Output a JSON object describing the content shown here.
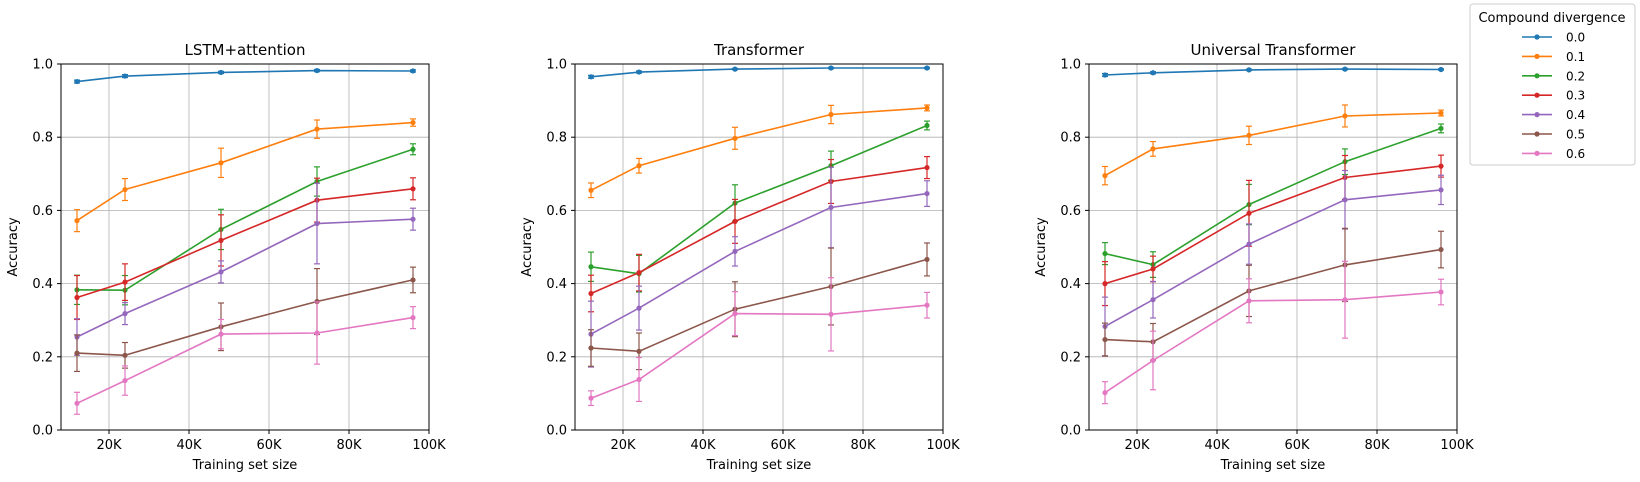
{
  "legend": {
    "title": "Compound divergence",
    "entries": [
      "0.0",
      "0.1",
      "0.2",
      "0.3",
      "0.4",
      "0.5",
      "0.6"
    ]
  },
  "colors": [
    "#1f77b4",
    "#ff7f0e",
    "#2ca02c",
    "#d62728",
    "#9467bd",
    "#8c564b",
    "#e377c2"
  ],
  "chart_data": [
    {
      "type": "line",
      "title": "LSTM+attention",
      "xlabel": "Training set size",
      "ylabel": "Accuracy",
      "xlim": [
        8000,
        100000
      ],
      "ylim": [
        0,
        1
      ],
      "xticks": [
        20000,
        40000,
        60000,
        80000,
        100000
      ],
      "xtick_labels": [
        "20K",
        "40K",
        "60K",
        "80K",
        "100K"
      ],
      "yticks": [
        0,
        0.2,
        0.4,
        0.6,
        0.8,
        1.0
      ],
      "ytick_labels": [
        "0.0",
        "0.2",
        "0.4",
        "0.6",
        "0.8",
        "1.0"
      ],
      "grid": true,
      "x": [
        12000,
        24000,
        48000,
        72000,
        96000
      ],
      "series": [
        {
          "name": "0.0",
          "values": [
            0.952,
            0.967,
            0.977,
            0.982,
            0.981
          ],
          "err": [
            0.004,
            0.004,
            0.003,
            0.003,
            0.003
          ]
        },
        {
          "name": "0.1",
          "values": [
            0.572,
            0.657,
            0.73,
            0.822,
            0.84
          ],
          "err": [
            0.03,
            0.03,
            0.04,
            0.025,
            0.01
          ]
        },
        {
          "name": "0.2",
          "values": [
            0.383,
            0.382,
            0.548,
            0.679,
            0.767
          ],
          "err": [
            0.04,
            0.04,
            0.055,
            0.04,
            0.015
          ]
        },
        {
          "name": "0.3",
          "values": [
            0.362,
            0.404,
            0.518,
            0.628,
            0.659
          ],
          "err": [
            0.06,
            0.05,
            0.07,
            0.06,
            0.03
          ]
        },
        {
          "name": "0.4",
          "values": [
            0.254,
            0.318,
            0.432,
            0.564,
            0.576
          ],
          "err": [
            0.05,
            0.03,
            0.03,
            0.11,
            0.03
          ]
        },
        {
          "name": "0.5",
          "values": [
            0.21,
            0.204,
            0.282,
            0.351,
            0.41
          ],
          "err": [
            0.05,
            0.035,
            0.065,
            0.09,
            0.035
          ]
        },
        {
          "name": "0.6",
          "values": [
            0.073,
            0.135,
            0.262,
            0.265,
            0.307
          ],
          "err": [
            0.03,
            0.04,
            0.04,
            0.085,
            0.03
          ]
        }
      ]
    },
    {
      "type": "line",
      "title": "Transformer",
      "xlabel": "Training set size",
      "ylabel": "Accuracy",
      "xlim": [
        8000,
        100000
      ],
      "ylim": [
        0,
        1
      ],
      "xticks": [
        20000,
        40000,
        60000,
        80000,
        100000
      ],
      "xtick_labels": [
        "20K",
        "40K",
        "60K",
        "80K",
        "100K"
      ],
      "yticks": [
        0,
        0.2,
        0.4,
        0.6,
        0.8,
        1.0
      ],
      "ytick_labels": [
        "0.0",
        "0.2",
        "0.4",
        "0.6",
        "0.8",
        "1.0"
      ],
      "grid": true,
      "x": [
        12000,
        24000,
        48000,
        72000,
        96000
      ],
      "series": [
        {
          "name": "0.0",
          "values": [
            0.965,
            0.978,
            0.986,
            0.989,
            0.989
          ],
          "err": [
            0.004,
            0.003,
            0.002,
            0.002,
            0.002
          ]
        },
        {
          "name": "0.1",
          "values": [
            0.655,
            0.722,
            0.797,
            0.862,
            0.88
          ],
          "err": [
            0.02,
            0.02,
            0.03,
            0.025,
            0.008
          ]
        },
        {
          "name": "0.2",
          "values": [
            0.446,
            0.427,
            0.62,
            0.722,
            0.832
          ],
          "err": [
            0.04,
            0.05,
            0.05,
            0.04,
            0.012
          ]
        },
        {
          "name": "0.3",
          "values": [
            0.373,
            0.43,
            0.57,
            0.679,
            0.717
          ],
          "err": [
            0.05,
            0.05,
            0.06,
            0.06,
            0.03
          ]
        },
        {
          "name": "0.4",
          "values": [
            0.262,
            0.333,
            0.488,
            0.608,
            0.646
          ],
          "err": [
            0.09,
            0.06,
            0.04,
            0.11,
            0.035
          ]
        },
        {
          "name": "0.5",
          "values": [
            0.224,
            0.215,
            0.33,
            0.392,
            0.466
          ],
          "err": [
            0.05,
            0.05,
            0.075,
            0.105,
            0.045
          ]
        },
        {
          "name": "0.6",
          "values": [
            0.087,
            0.138,
            0.318,
            0.316,
            0.341
          ],
          "err": [
            0.02,
            0.06,
            0.06,
            0.1,
            0.035
          ]
        }
      ]
    },
    {
      "type": "line",
      "title": "Universal Transformer",
      "xlabel": "Training set size",
      "ylabel": "Accuracy",
      "xlim": [
        8000,
        100000
      ],
      "ylim": [
        0,
        1
      ],
      "xticks": [
        20000,
        40000,
        60000,
        80000,
        100000
      ],
      "xtick_labels": [
        "20K",
        "40K",
        "60K",
        "80K",
        "100K"
      ],
      "yticks": [
        0,
        0.2,
        0.4,
        0.6,
        0.8,
        1.0
      ],
      "ytick_labels": [
        "0.0",
        "0.2",
        "0.4",
        "0.6",
        "0.8",
        "1.0"
      ],
      "grid": true,
      "x": [
        12000,
        24000,
        48000,
        72000,
        96000
      ],
      "series": [
        {
          "name": "0.0",
          "values": [
            0.97,
            0.976,
            0.984,
            0.986,
            0.985
          ],
          "err": [
            0.004,
            0.003,
            0.002,
            0.002,
            0.002
          ]
        },
        {
          "name": "0.1",
          "values": [
            0.695,
            0.768,
            0.805,
            0.858,
            0.866
          ],
          "err": [
            0.025,
            0.02,
            0.025,
            0.03,
            0.008
          ]
        },
        {
          "name": "0.2",
          "values": [
            0.482,
            0.452,
            0.616,
            0.733,
            0.824
          ],
          "err": [
            0.03,
            0.035,
            0.055,
            0.035,
            0.012
          ]
        },
        {
          "name": "0.3",
          "values": [
            0.4,
            0.44,
            0.592,
            0.69,
            0.721
          ],
          "err": [
            0.06,
            0.035,
            0.09,
            0.06,
            0.03
          ]
        },
        {
          "name": "0.4",
          "values": [
            0.283,
            0.356,
            0.508,
            0.629,
            0.656
          ],
          "err": [
            0.08,
            0.05,
            0.055,
            0.08,
            0.04
          ]
        },
        {
          "name": "0.5",
          "values": [
            0.247,
            0.241,
            0.38,
            0.451,
            0.493
          ],
          "err": [
            0.045,
            0.05,
            0.07,
            0.1,
            0.05
          ]
        },
        {
          "name": "0.6",
          "values": [
            0.102,
            0.19,
            0.353,
            0.356,
            0.377
          ],
          "err": [
            0.03,
            0.08,
            0.06,
            0.105,
            0.035
          ]
        }
      ]
    }
  ]
}
